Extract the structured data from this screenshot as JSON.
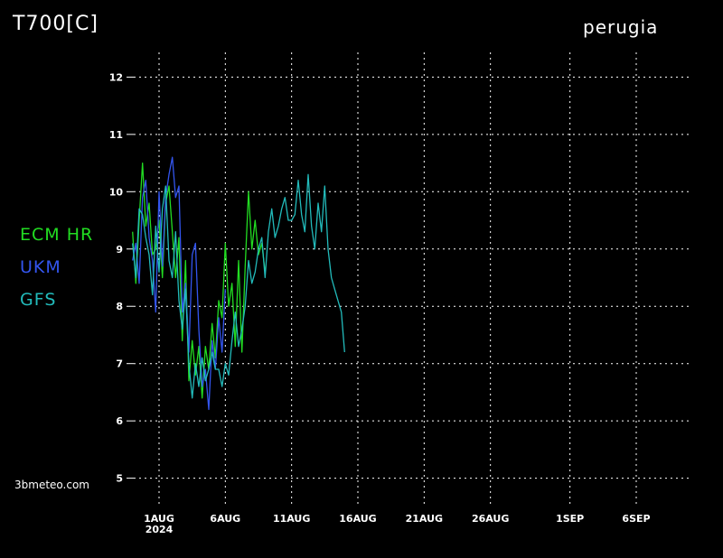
{
  "header": {
    "variable": "T700[C]",
    "location": "perugia"
  },
  "footer": {
    "credit": "3bmeteo.com"
  },
  "colors": {
    "background": "#000000",
    "grid": "#ffffff",
    "ecm": "#22dd22",
    "ukm": "#3355ee",
    "gfs": "#22bbbb"
  },
  "chart_data": {
    "type": "line",
    "title": "T700[C]",
    "subtitle": "perugia",
    "xlabel": "",
    "ylabel": "",
    "x_unit": "days since 29 Jul 2024",
    "xlim": [
      0,
      40
    ],
    "ylim": [
      4.6,
      12.4
    ],
    "yticks": [
      5,
      6,
      7,
      8,
      9,
      10,
      11,
      12
    ],
    "xticks": [
      {
        "x": 2,
        "label": "1AUG",
        "sub": "2024"
      },
      {
        "x": 7,
        "label": "6AUG",
        "sub": ""
      },
      {
        "x": 12,
        "label": "11AUG",
        "sub": ""
      },
      {
        "x": 17,
        "label": "16AUG",
        "sub": ""
      },
      {
        "x": 22,
        "label": "21AUG",
        "sub": ""
      },
      {
        "x": 27,
        "label": "26AUG",
        "sub": ""
      },
      {
        "x": 33,
        "label": "1SEP",
        "sub": ""
      },
      {
        "x": 38,
        "label": "6SEP",
        "sub": ""
      }
    ],
    "grid": true,
    "legend_position": "left",
    "series": [
      {
        "name": "ECM HR",
        "color": "#22dd22",
        "x": [
          0,
          0.25,
          0.5,
          0.75,
          1,
          1.25,
          1.5,
          1.75,
          2,
          2.25,
          2.5,
          2.75,
          3,
          3.25,
          3.5,
          3.75,
          4,
          4.25,
          4.5,
          4.75,
          5,
          5.25,
          5.5,
          5.75,
          6,
          6.25,
          6.5,
          6.75,
          7,
          7.25,
          7.5,
          7.75,
          8,
          8.25,
          8.5,
          8.75,
          9,
          9.25,
          9.5,
          9.75,
          10
        ],
        "y": [
          9.3,
          8.4,
          9.5,
          10.5,
          9.4,
          9.8,
          8.9,
          9.0,
          9.5,
          8.5,
          9.8,
          10.1,
          9.3,
          8.5,
          9.2,
          7.4,
          8.8,
          6.7,
          7.4,
          6.8,
          7.3,
          6.4,
          7.3,
          6.9,
          7.7,
          7.1,
          8.1,
          7.8,
          9.1,
          8.0,
          8.4,
          7.3,
          8.8,
          7.2,
          8.7,
          10.0,
          9.0,
          9.5,
          8.9,
          9.1,
          8.6
        ]
      },
      {
        "name": "UKM",
        "color": "#3355ee",
        "x": [
          0,
          0.25,
          0.5,
          0.75,
          1,
          1.25,
          1.5,
          1.75,
          2,
          2.25,
          2.5,
          2.75,
          3,
          3.25,
          3.5,
          3.75,
          4,
          4.25,
          4.5,
          4.75,
          5,
          5.25,
          5.5,
          5.75,
          6,
          6.25,
          6.5,
          6.75,
          7
        ],
        "y": [
          8.8,
          9.1,
          8.4,
          9.9,
          10.2,
          9.2,
          8.8,
          7.9,
          10.0,
          8.7,
          9.9,
          10.3,
          10.6,
          9.9,
          10.1,
          7.9,
          8.4,
          7.2,
          8.9,
          9.1,
          7.6,
          6.6,
          6.9,
          6.2,
          7.4,
          6.9,
          7.8,
          7.2,
          8.3
        ]
      },
      {
        "name": "GFS",
        "color": "#22bbbb",
        "x": [
          0,
          0.25,
          0.5,
          0.75,
          1,
          1.25,
          1.5,
          1.75,
          2,
          2.25,
          2.5,
          2.75,
          3,
          3.25,
          3.5,
          3.75,
          4,
          4.25,
          4.5,
          4.75,
          5,
          5.25,
          5.5,
          5.75,
          6,
          6.25,
          6.5,
          6.75,
          7,
          7.25,
          7.5,
          7.75,
          8,
          8.25,
          8.5,
          8.75,
          9,
          9.25,
          9.5,
          9.75,
          10,
          10.25,
          10.5,
          10.75,
          11,
          11.25,
          11.5,
          11.75,
          12,
          12.25,
          12.5,
          12.75,
          13,
          13.25,
          13.5,
          13.75,
          14,
          14.25,
          14.5,
          14.75,
          15,
          15.25,
          15.5,
          15.75,
          16
        ],
        "y": [
          9.1,
          8.5,
          9.7,
          9.6,
          9.2,
          8.9,
          8.2,
          9.4,
          8.6,
          9.7,
          10.1,
          8.8,
          8.5,
          9.3,
          8.1,
          7.6,
          8.3,
          7.0,
          6.4,
          7.0,
          6.6,
          7.1,
          6.7,
          6.9,
          7.2,
          6.9,
          6.9,
          6.6,
          7.0,
          6.8,
          7.4,
          7.9,
          7.3,
          7.6,
          8.0,
          8.8,
          8.4,
          8.6,
          9.0,
          9.2,
          8.5,
          9.3,
          9.7,
          9.2,
          9.4,
          9.7,
          9.9,
          9.5,
          9.5,
          9.6,
          10.2,
          9.6,
          9.3,
          10.3,
          9.4,
          9.0,
          9.8,
          9.3,
          10.1,
          9.0,
          8.5,
          8.3,
          8.1,
          7.9,
          7.2
        ]
      }
    ]
  }
}
